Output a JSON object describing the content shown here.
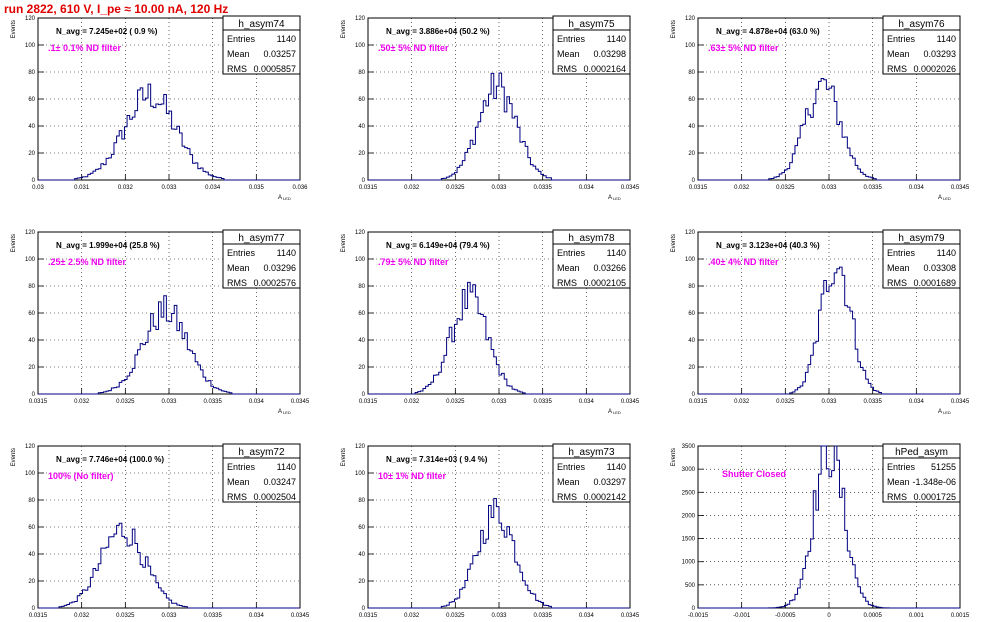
{
  "title": "run 2822,   610 V, I_pe ≈ 10.00 nA, 120 Hz",
  "chart_data": [
    {
      "type": "histogram",
      "name": "h_asym74",
      "entries": "1140",
      "mean": "0.03257",
      "rms": "0.0005857",
      "navg": "N_avg = 7.245e+02 ( 0.9 %)",
      "note": ".1± 0.1% ND filter",
      "xlim": [
        0.03,
        0.036
      ],
      "ylim": [
        0,
        120
      ],
      "xticks": [
        "0.03",
        "0.031",
        "0.032",
        "0.033",
        "0.034",
        "0.035",
        "0.036"
      ],
      "yticks": [
        "0",
        "20",
        "40",
        "60",
        "80",
        "100",
        "120"
      ],
      "ylabel": "Events",
      "xlabel": "A_LED",
      "peak_x": 0.03257,
      "peak_y": 63
    },
    {
      "type": "histogram",
      "name": "h_asym75",
      "entries": "1140",
      "mean": "0.03298",
      "rms": "0.0002164",
      "navg": "N_avg = 3.886e+04 (50.2 %)",
      "note": ".50± 5% ND filter",
      "xlim": [
        0.0315,
        0.0345
      ],
      "ylim": [
        0,
        120
      ],
      "xticks": [
        "0.0315",
        "0.032",
        "0.0325",
        "0.033",
        "0.0335",
        "0.034",
        "0.0345"
      ],
      "yticks": [
        "0",
        "20",
        "40",
        "60",
        "80",
        "100",
        "120"
      ],
      "ylabel": "Events",
      "xlabel": "A_LED",
      "peak_x": 0.03298,
      "peak_y": 69
    },
    {
      "type": "histogram",
      "name": "h_asym76",
      "entries": "1140",
      "mean": "0.03293",
      "rms": "0.0002026",
      "navg": "N_avg = 4.878e+04 (63.0 %)",
      "note": ".63± 5% ND filter",
      "xlim": [
        0.0315,
        0.0345
      ],
      "ylim": [
        0,
        120
      ],
      "xticks": [
        "0.0315",
        "0.032",
        "0.0325",
        "0.033",
        "0.0335",
        "0.034",
        "0.0345"
      ],
      "yticks": [
        "0",
        "20",
        "40",
        "60",
        "80",
        "100",
        "120"
      ],
      "ylabel": "Events",
      "xlabel": "A_LED",
      "peak_x": 0.03293,
      "peak_y": 70
    },
    {
      "type": "histogram",
      "name": "h_asym77",
      "entries": "1140",
      "mean": "0.03296",
      "rms": "0.0002576",
      "navg": "N_avg = 1.999e+04 (25.8 %)",
      "note": ".25± 2.5% ND filter",
      "xlim": [
        0.0315,
        0.0345
      ],
      "ylim": [
        0,
        120
      ],
      "xticks": [
        "0.0315",
        "0.032",
        "0.0325",
        "0.033",
        "0.0335",
        "0.034",
        "0.0345"
      ],
      "yticks": [
        "0",
        "20",
        "40",
        "60",
        "80",
        "100",
        "120"
      ],
      "ylabel": "Events",
      "xlabel": "A_LED",
      "peak_x": 0.03296,
      "peak_y": 61
    },
    {
      "type": "histogram",
      "name": "h_asym78",
      "entries": "1140",
      "mean": "0.03266",
      "rms": "0.0002105",
      "navg": "N_avg = 6.149e+04 (79.4 %)",
      "note": ".79± 5% ND filter",
      "xlim": [
        0.0315,
        0.0345
      ],
      "ylim": [
        0,
        120
      ],
      "xticks": [
        "0.0315",
        "0.032",
        "0.0325",
        "0.033",
        "0.0335",
        "0.034",
        "0.0345"
      ],
      "yticks": [
        "0",
        "20",
        "40",
        "60",
        "80",
        "100",
        "120"
      ],
      "ylabel": "Events",
      "xlabel": "A_LED",
      "peak_x": 0.03266,
      "peak_y": 70
    },
    {
      "type": "histogram",
      "name": "h_asym79",
      "entries": "1140",
      "mean": "0.03308",
      "rms": "0.0001689",
      "navg": "N_avg = 3.123e+04 (40.3 %)",
      "note": ".40± 4% ND filter",
      "xlim": [
        0.0315,
        0.0345
      ],
      "ylim": [
        0,
        120
      ],
      "xticks": [
        "0.0315",
        "0.032",
        "0.0325",
        "0.033",
        "0.0335",
        "0.034",
        "0.0345"
      ],
      "yticks": [
        "0",
        "20",
        "40",
        "60",
        "80",
        "100",
        "120"
      ],
      "ylabel": "Events",
      "xlabel": "A_LED",
      "peak_x": 0.03308,
      "peak_y": 100
    },
    {
      "type": "histogram",
      "name": "h_asym72",
      "entries": "1140",
      "mean": "0.03247",
      "rms": "0.0002504",
      "navg": "N_avg = 7.746e+04 (100.0 %)",
      "note": "100% (No filter)",
      "xlim": [
        0.0315,
        0.0345
      ],
      "ylim": [
        0,
        120
      ],
      "xticks": [
        "0.0315",
        "0.032",
        "0.0325",
        "0.033",
        "0.0335",
        "0.034",
        "0.0345"
      ],
      "yticks": [
        "0",
        "20",
        "40",
        "60",
        "80",
        "100",
        "120"
      ],
      "ylabel": "Events",
      "xlabel": "A_LED",
      "peak_x": 0.03247,
      "peak_y": 58
    },
    {
      "type": "histogram",
      "name": "h_asym73",
      "entries": "1140",
      "mean": "0.03297",
      "rms": "0.0002142",
      "navg": "N_avg = 7.314e+03 ( 9.4 %)",
      "note": "10± 1% ND filter",
      "xlim": [
        0.0315,
        0.0345
      ],
      "ylim": [
        0,
        120
      ],
      "xticks": [
        "0.0315",
        "0.032",
        "0.0325",
        "0.033",
        "0.0335",
        "0.034",
        "0.0345"
      ],
      "yticks": [
        "0",
        "20",
        "40",
        "60",
        "80",
        "100",
        "120"
      ],
      "ylabel": "Events",
      "xlabel": "A_LED",
      "peak_x": 0.03297,
      "peak_y": 71
    },
    {
      "type": "histogram",
      "name": "hPed_asym",
      "entries": "51255",
      "mean": "-1.348e-06",
      "rms": "0.0001725",
      "navg": "",
      "note": "Shutter Closed",
      "xlim": [
        -0.0015,
        0.0015
      ],
      "ylim": [
        0,
        3500
      ],
      "xticks": [
        "-0.0015",
        "-0.001",
        "-0.0005",
        "0",
        "0.0005",
        "0.001",
        "0.0015"
      ],
      "yticks": [
        "0",
        "500",
        "1000",
        "1500",
        "2000",
        "2500",
        "3000",
        "3500"
      ],
      "ylabel": "Events",
      "xlabel": "",
      "peak_x": 0.0,
      "peak_y": 3450
    }
  ]
}
